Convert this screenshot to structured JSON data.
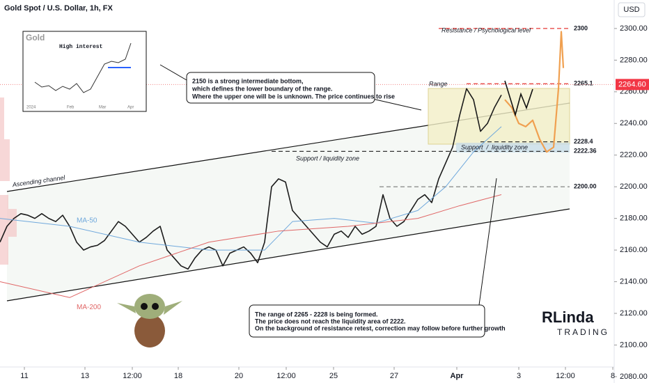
{
  "chart_data": {
    "type": "line",
    "title": "Gold Spot / U.S. Dollar, 1h, FX",
    "currency": "USD",
    "xlim": [
      0,
      88
    ],
    "ylim": [
      2076,
      2318
    ],
    "yticks": [
      {
        "value": 2080,
        "label": "2080.00"
      },
      {
        "value": 2100,
        "label": "2100.00"
      },
      {
        "value": 2120,
        "label": "2120.00"
      },
      {
        "value": 2140,
        "label": "2140.00"
      },
      {
        "value": 2160,
        "label": "2160.00"
      },
      {
        "value": 2180,
        "label": "2180.00"
      },
      {
        "value": 2200,
        "label": "2200.00"
      },
      {
        "value": 2220,
        "label": "2220.00"
      },
      {
        "value": 2240,
        "label": "2240.00"
      },
      {
        "value": 2260,
        "label": "2260.00"
      },
      {
        "value": 2280,
        "label": "2280.00"
      },
      {
        "value": 2300,
        "label": "2300.00"
      }
    ],
    "xticks": [
      {
        "value": 3.5,
        "label": "11"
      },
      {
        "value": 12.2,
        "label": "13"
      },
      {
        "value": 19,
        "label": "12:00"
      },
      {
        "value": 25.6,
        "label": "18"
      },
      {
        "value": 34.3,
        "label": "20"
      },
      {
        "value": 41.1,
        "label": "12:00"
      },
      {
        "value": 47.9,
        "label": "25"
      },
      {
        "value": 56.6,
        "label": "27"
      },
      {
        "value": 65.6,
        "label": "Apr"
      },
      {
        "value": 74.5,
        "label": "3"
      },
      {
        "value": 81.2,
        "label": "12:00"
      },
      {
        "value": 88,
        "label": "8"
      }
    ],
    "series": [
      {
        "color": "#1b1b1b",
        "width": 1.6,
        "x": [
          0,
          1,
          2,
          3,
          4,
          5,
          6,
          7,
          8,
          9,
          10,
          11,
          12,
          13,
          14,
          15,
          16,
          17,
          18,
          19,
          20,
          21,
          22,
          23,
          24,
          25,
          26,
          27,
          28,
          29,
          30,
          31,
          32,
          33,
          34,
          35,
          36,
          37,
          38,
          39,
          40,
          41,
          42,
          43,
          44,
          45,
          46,
          47,
          48,
          49,
          50,
          51,
          52,
          53,
          54,
          55,
          56,
          57,
          58,
          59,
          60,
          61,
          62,
          63,
          64,
          65,
          66,
          67,
          68,
          69,
          70,
          71,
          72
        ],
        "values": [
          2165,
          2175,
          2180,
          2183,
          2182,
          2180,
          2183,
          2180,
          2178,
          2182,
          2175,
          2165,
          2160,
          2162,
          2163,
          2166,
          2172,
          2178,
          2175,
          2170,
          2165,
          2168,
          2172,
          2175,
          2160,
          2155,
          2150,
          2148,
          2155,
          2160,
          2162,
          2160,
          2150,
          2158,
          2160,
          2162,
          2158,
          2152,
          2165,
          2200,
          2205,
          2203,
          2185,
          2180,
          2175,
          2170,
          2165,
          2162,
          2170,
          2172,
          2168,
          2175,
          2170,
          2172,
          2175,
          2195,
          2180,
          2175,
          2178,
          2185,
          2192,
          2195,
          2190,
          2205,
          2215,
          2225,
          2245,
          2262,
          2255,
          2235,
          2240,
          2250,
          2258
        ]
      },
      {
        "color": "#f0a050",
        "width": 2.2,
        "x": [
          72.5,
          73.5,
          74.5,
          75.5,
          76.5,
          77.5,
          78.5,
          79.5,
          80.2,
          80.6,
          80.9
        ],
        "values": [
          2255,
          2250,
          2240,
          2238,
          2242,
          2230,
          2222,
          2225,
          2262,
          2298,
          2275
        ]
      },
      {
        "name": "MA-50",
        "color": "#6fa8dc",
        "width": 1,
        "x": [
          0,
          10,
          20,
          30,
          38,
          42,
          48,
          54,
          60,
          64,
          68,
          72
        ],
        "values": [
          2180,
          2175,
          2165,
          2160,
          2160,
          2178,
          2180,
          2177,
          2185,
          2200,
          2222,
          2238
        ]
      },
      {
        "name": "MA-200",
        "color": "#e06666",
        "width": 1,
        "x": [
          0,
          10,
          20,
          30,
          40,
          50,
          60,
          66,
          72
        ],
        "values": [
          2140,
          2130,
          2150,
          2165,
          2172,
          2175,
          2180,
          2188,
          2195
        ]
      }
    ],
    "levels": [
      {
        "value": 2300,
        "label": "2300",
        "color": "#e53935",
        "from": 63
      },
      {
        "value": 2265.1,
        "label": "2265.1",
        "color": "#e53935",
        "from": 67
      },
      {
        "value": 2228.4,
        "label": "2228.4",
        "color": "#333333",
        "from": 69
      },
      {
        "value": 2222.36,
        "label": "2222.36",
        "color": "#333333",
        "from": 39
      },
      {
        "value": 2200,
        "label": "2200.00",
        "color": "#777777",
        "from": 54.5
      }
    ],
    "current_price": {
      "value": 2264.6,
      "label": "2264.60"
    },
    "annotations": {
      "resistance": "Resistance / Psychological level",
      "range": "Range",
      "support_box": "Support  /  liquidity zone",
      "support": "Support / liquidity zone",
      "channel": "Ascending channel",
      "callout_top": [
        "2150 is a strong intermediate bottom,",
        "which defines the lower boundary of the range.",
        "Where the upper one will be is unknown. The price continues to rise"
      ],
      "callout_bottom": [
        "The range of 2265 - 2228 is being formed.",
        "The price does not reach the liquidity area of 2222.",
        "On the background of resistance retest, correction may follow before further growth"
      ]
    },
    "inset": {
      "title": "Gold",
      "note": "High interest",
      "xlabels": [
        "2024",
        "Feb",
        "Mar",
        "Apr"
      ]
    },
    "logo": {
      "name": "RLinda",
      "sub": "TRADING"
    }
  }
}
